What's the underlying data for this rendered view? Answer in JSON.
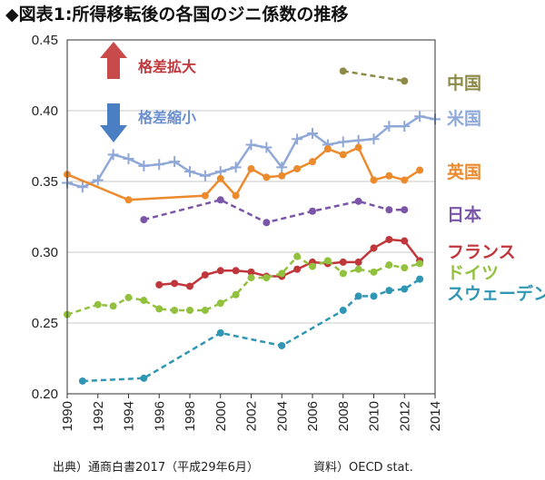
{
  "chart_data": {
    "type": "line",
    "title": "◆図表1:所得移転後の各国のジニ係数の推移",
    "xlabel": "",
    "ylabel": "",
    "xlim": [
      1990,
      2014
    ],
    "ylim": [
      0.2,
      0.45
    ],
    "x_ticks": [
      1990,
      1992,
      1994,
      1996,
      1998,
      2000,
      2002,
      2004,
      2006,
      2008,
      2010,
      2012,
      2014
    ],
    "y_ticks": [
      "0.20",
      "0.25",
      "0.30",
      "0.35",
      "0.40",
      "0.45"
    ],
    "grid": "horizontal",
    "annotations": {
      "increase": "格差拡大",
      "decrease": "格差縮小"
    },
    "series": [
      {
        "name": "中国",
        "color": "#8c8a46",
        "dashed": true,
        "marker": "circle",
        "points": [
          [
            2008,
            0.428
          ],
          [
            2012,
            0.421
          ]
        ]
      },
      {
        "name": "米国",
        "color": "#8fa8d8",
        "dashed": false,
        "marker": "plus",
        "points": [
          [
            1990,
            0.349
          ],
          [
            1991,
            0.346
          ],
          [
            1992,
            0.351
          ],
          [
            1993,
            0.369
          ],
          [
            1994,
            0.366
          ],
          [
            1995,
            0.361
          ],
          [
            1996,
            0.362
          ],
          [
            1997,
            0.364
          ],
          [
            1998,
            0.357
          ],
          [
            1999,
            0.354
          ],
          [
            2000,
            0.357
          ],
          [
            2001,
            0.36
          ],
          [
            2002,
            0.376
          ],
          [
            2003,
            0.374
          ],
          [
            2004,
            0.36
          ],
          [
            2005,
            0.38
          ],
          [
            2006,
            0.384
          ],
          [
            2007,
            0.376
          ],
          [
            2008,
            0.378
          ],
          [
            2009,
            0.379
          ],
          [
            2010,
            0.38
          ],
          [
            2011,
            0.389
          ],
          [
            2012,
            0.389
          ],
          [
            2013,
            0.396
          ],
          [
            2014,
            0.394
          ]
        ]
      },
      {
        "name": "英国",
        "color": "#ec8a2e",
        "dashed": false,
        "marker": "circle",
        "points": [
          [
            1990,
            0.355
          ],
          [
            1994,
            0.337
          ],
          [
            1999,
            0.34
          ],
          [
            2000,
            0.352
          ],
          [
            2001,
            0.34
          ],
          [
            2002,
            0.359
          ],
          [
            2003,
            0.353
          ],
          [
            2004,
            0.354
          ],
          [
            2005,
            0.359
          ],
          [
            2006,
            0.364
          ],
          [
            2007,
            0.373
          ],
          [
            2008,
            0.369
          ],
          [
            2009,
            0.374
          ],
          [
            2010,
            0.351
          ],
          [
            2011,
            0.354
          ],
          [
            2012,
            0.351
          ],
          [
            2013,
            0.358
          ]
        ]
      },
      {
        "name": "日本",
        "color": "#7a55a8",
        "dashed": true,
        "marker": "circle",
        "points": [
          [
            1995,
            0.323
          ],
          [
            2000,
            0.337
          ],
          [
            2003,
            0.321
          ],
          [
            2006,
            0.329
          ],
          [
            2009,
            0.336
          ],
          [
            2011,
            0.33
          ],
          [
            2012,
            0.33
          ]
        ]
      },
      {
        "name": "フランス",
        "color": "#c0373b",
        "dashed": false,
        "marker": "circle",
        "points": [
          [
            1996,
            0.277
          ],
          [
            1997,
            0.278
          ],
          [
            1998,
            0.276
          ],
          [
            1999,
            0.284
          ],
          [
            2000,
            0.287
          ],
          [
            2001,
            0.287
          ],
          [
            2002,
            0.286
          ],
          [
            2003,
            0.283
          ],
          [
            2004,
            0.283
          ],
          [
            2005,
            0.288
          ],
          [
            2006,
            0.293
          ],
          [
            2007,
            0.292
          ],
          [
            2008,
            0.293
          ],
          [
            2009,
            0.293
          ],
          [
            2010,
            0.303
          ],
          [
            2011,
            0.309
          ],
          [
            2012,
            0.308
          ],
          [
            2013,
            0.294
          ]
        ]
      },
      {
        "name": "ドイツ",
        "color": "#92c13d",
        "dashed": true,
        "marker": "circle",
        "points": [
          [
            1990,
            0.256
          ],
          [
            1992,
            0.263
          ],
          [
            1993,
            0.262
          ],
          [
            1994,
            0.268
          ],
          [
            1995,
            0.266
          ],
          [
            1996,
            0.26
          ],
          [
            1997,
            0.259
          ],
          [
            1998,
            0.259
          ],
          [
            1999,
            0.259
          ],
          [
            2000,
            0.264
          ],
          [
            2001,
            0.27
          ],
          [
            2002,
            0.282
          ],
          [
            2003,
            0.282
          ],
          [
            2004,
            0.285
          ],
          [
            2005,
            0.297
          ],
          [
            2006,
            0.29
          ],
          [
            2007,
            0.294
          ],
          [
            2008,
            0.285
          ],
          [
            2009,
            0.288
          ],
          [
            2010,
            0.286
          ],
          [
            2011,
            0.291
          ],
          [
            2012,
            0.289
          ],
          [
            2013,
            0.292
          ]
        ]
      },
      {
        "name": "スウェーデン",
        "color": "#2f97b4",
        "dashed": true,
        "marker": "circle",
        "points": [
          [
            1991,
            0.209
          ],
          [
            1995,
            0.211
          ],
          [
            2000,
            0.243
          ],
          [
            2004,
            0.234
          ],
          [
            2008,
            0.259
          ],
          [
            2009,
            0.269
          ],
          [
            2010,
            0.269
          ],
          [
            2011,
            0.273
          ],
          [
            2012,
            0.274
          ],
          [
            2013,
            0.281
          ]
        ]
      }
    ]
  },
  "footer": {
    "source": "出典）通商白書2017（平成29年6月）",
    "data": "資料）OECD stat."
  }
}
